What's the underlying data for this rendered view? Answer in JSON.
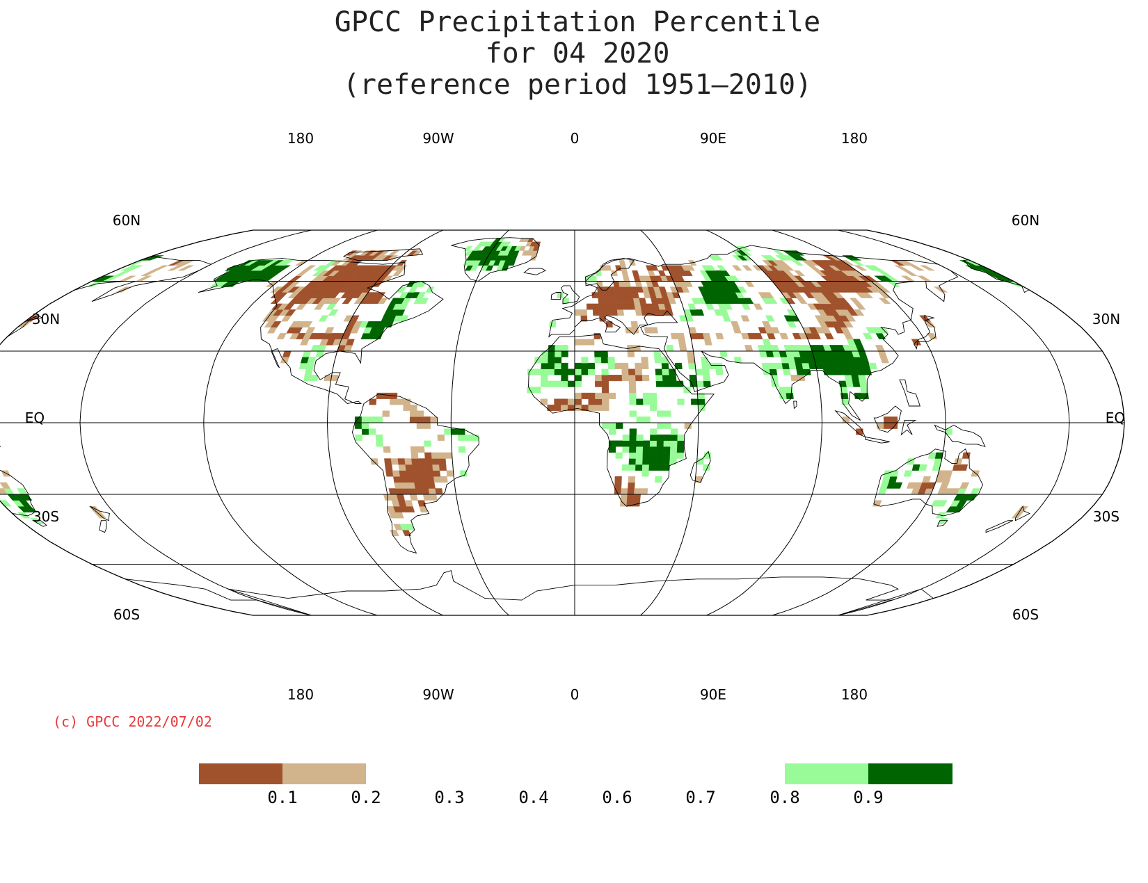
{
  "title": {
    "line1": "GPCC Precipitation Percentile",
    "line2": "for 04 2020",
    "line3": "(reference period 1951–2010)"
  },
  "map": {
    "projection": "Robinson",
    "lon_labels_top": [
      "180",
      "90W",
      "0",
      "90E",
      "180"
    ],
    "lon_labels_bottom": [
      "180",
      "90W",
      "0",
      "90E",
      "180"
    ],
    "lat_labels_left": [
      "60N",
      "30N",
      "EQ",
      "30S",
      "60S"
    ],
    "lat_labels_right": [
      "60N",
      "30N",
      "EQ",
      "30S",
      "60S"
    ],
    "graticule_color": "#000000"
  },
  "copyright": "(c) GPCC 2022/07/02",
  "colors": {
    "very_dry": "#a0522d",
    "dry": "#d2b48c",
    "wet": "#98fb98",
    "very_wet": "#006400"
  },
  "legend": {
    "labels": [
      "0.1",
      "0.2",
      "0.3",
      "0.4",
      "0.6",
      "0.7",
      "0.8",
      "0.9"
    ],
    "swatches": [
      {
        "name": "below-0.1",
        "color": "#a0522d"
      },
      {
        "name": "0.1-0.2",
        "color": "#d2b48c"
      },
      {
        "name": "0.8-0.9",
        "color": "#98fb98"
      },
      {
        "name": "above-0.9",
        "color": "#006400"
      }
    ]
  }
}
